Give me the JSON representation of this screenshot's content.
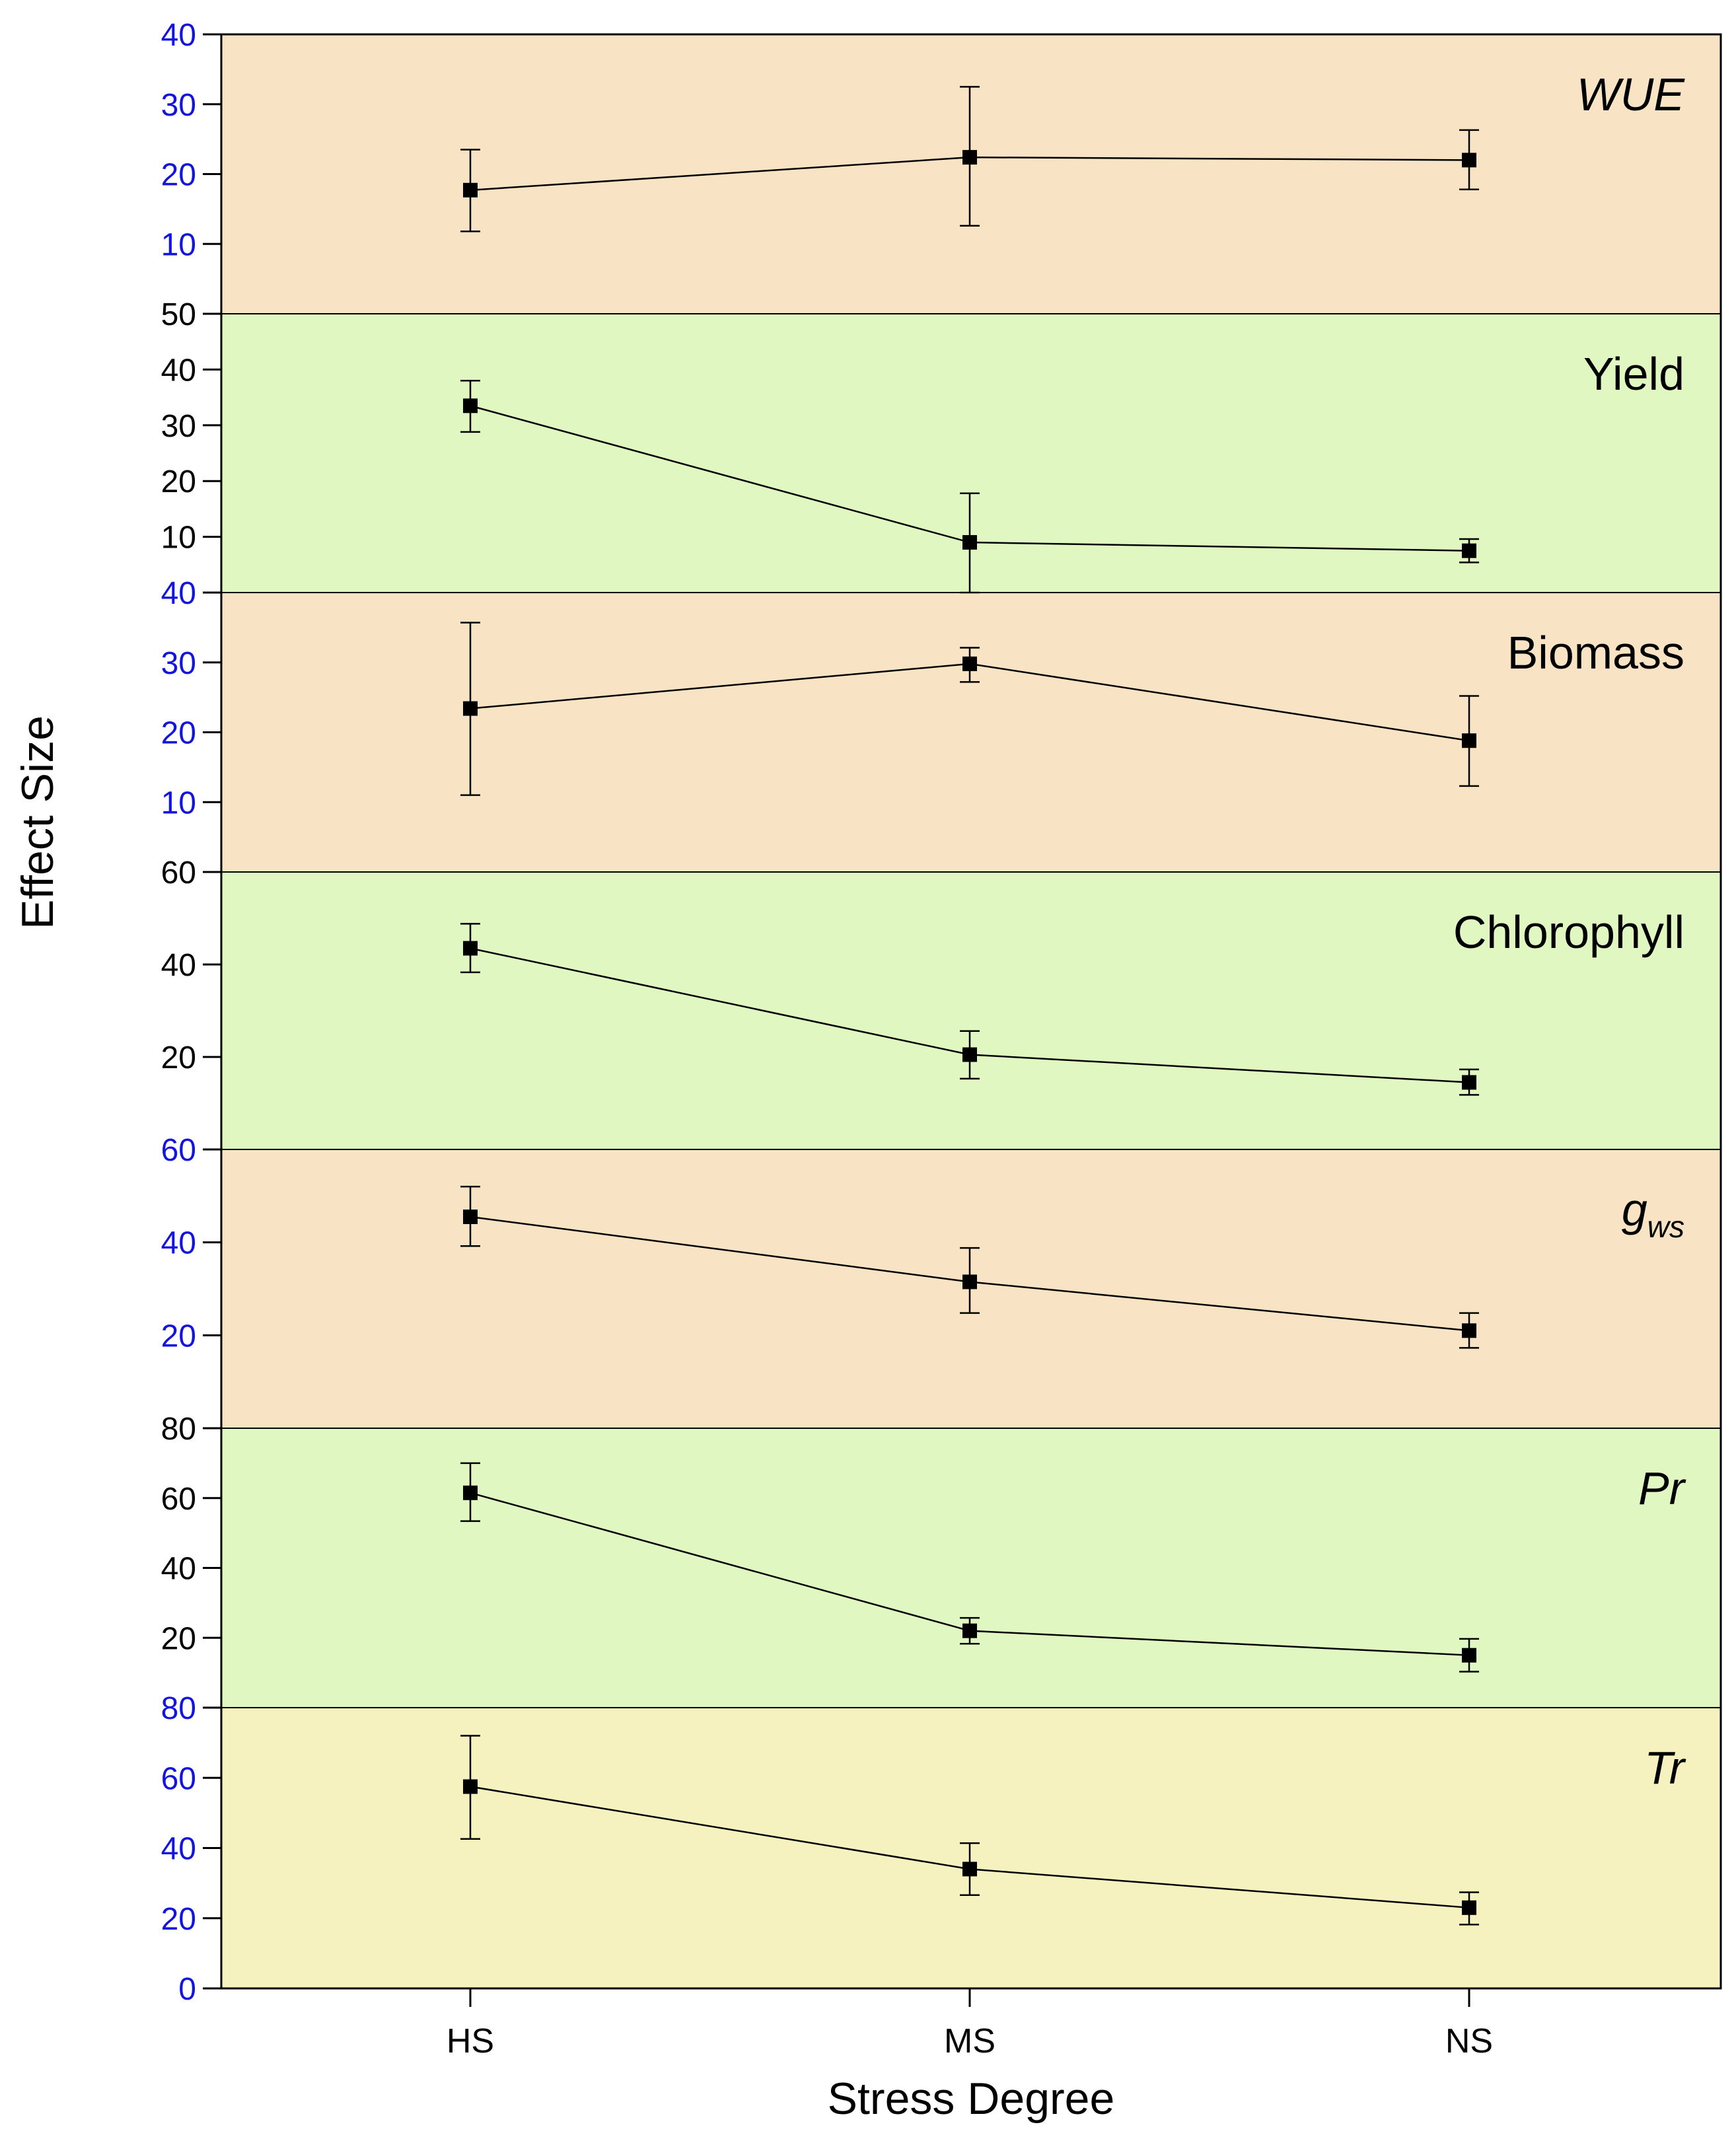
{
  "chart_data": {
    "type": "line",
    "xlabel": "Stress Degree",
    "ylabel": "Effect Size",
    "categories": [
      "HS",
      "MS",
      "NS"
    ],
    "panels": [
      {
        "name": "WUE",
        "label_style": "italic",
        "bg": "#f8e4c4",
        "tick_color": "#1414e0",
        "ylim": [
          0,
          40
        ],
        "ticks": [
          "10",
          "20",
          "30",
          "40"
        ],
        "tick_values": [
          10,
          20,
          30,
          40
        ],
        "values": [
          17.7,
          22.4,
          22.0
        ],
        "err_low": [
          11.8,
          12.6,
          17.8
        ],
        "err_high": [
          23.5,
          32.5,
          26.3
        ]
      },
      {
        "name": "Yield",
        "label_style": "normal",
        "bg": "#e0f7c1",
        "tick_color": "#000000",
        "ylim": [
          0,
          50
        ],
        "ticks": [
          "10",
          "20",
          "30",
          "40",
          "50"
        ],
        "tick_values": [
          10,
          20,
          30,
          40,
          50
        ],
        "values": [
          33.5,
          9.0,
          7.5
        ],
        "err_low": [
          28.8,
          0.0,
          5.4
        ],
        "err_high": [
          38.0,
          17.8,
          9.6
        ]
      },
      {
        "name": "Biomass",
        "label_style": "normal",
        "bg": "#f8e4c4",
        "tick_color": "#1414e0",
        "ylim": [
          0,
          40
        ],
        "ticks": [
          "10",
          "20",
          "30",
          "40"
        ],
        "tick_values": [
          10,
          20,
          30,
          40
        ],
        "values": [
          23.4,
          29.8,
          18.8
        ],
        "err_low": [
          11.0,
          27.2,
          12.3
        ],
        "err_high": [
          35.7,
          32.1,
          25.2
        ]
      },
      {
        "name": "Chlorophyll",
        "label_style": "normal",
        "bg": "#e0f7c1",
        "tick_color": "#000000",
        "ylim": [
          0,
          60
        ],
        "ticks": [
          "20",
          "40",
          "60"
        ],
        "tick_values": [
          20,
          40,
          60
        ],
        "values": [
          43.5,
          20.5,
          14.5
        ],
        "err_low": [
          38.3,
          15.3,
          11.8
        ],
        "err_high": [
          48.8,
          25.6,
          17.3
        ]
      },
      {
        "name": "g",
        "sub": "ws",
        "label_style": "italic",
        "bg": "#f8e4c4",
        "tick_color": "#1414e0",
        "ylim": [
          0,
          60
        ],
        "ticks": [
          "20",
          "40",
          "60"
        ],
        "tick_values": [
          20,
          40,
          60
        ],
        "values": [
          45.5,
          31.5,
          21.0
        ],
        "err_low": [
          39.2,
          24.8,
          17.3
        ],
        "err_high": [
          52.0,
          38.8,
          24.8
        ]
      },
      {
        "name": "Pr",
        "label_style": "italic",
        "bg": "#e0f7c1",
        "tick_color": "#000000",
        "ylim": [
          0,
          80
        ],
        "ticks": [
          "20",
          "40",
          "60",
          "80"
        ],
        "tick_values": [
          20,
          40,
          60,
          80
        ],
        "values": [
          61.5,
          22.0,
          15.0
        ],
        "err_low": [
          53.4,
          18.3,
          10.3
        ],
        "err_high": [
          70.0,
          25.7,
          19.7
        ]
      },
      {
        "name": "Tr",
        "label_style": "italic",
        "bg": "#f5f2c0",
        "tick_color": "#1414e0",
        "ylim": [
          0,
          80
        ],
        "ticks": [
          "0",
          "20",
          "40",
          "60",
          "80"
        ],
        "tick_values": [
          0,
          20,
          40,
          60,
          80
        ],
        "values": [
          57.5,
          34.0,
          23.0
        ],
        "err_low": [
          42.6,
          26.6,
          18.2
        ],
        "err_high": [
          72.0,
          41.4,
          27.4
        ]
      }
    ]
  }
}
